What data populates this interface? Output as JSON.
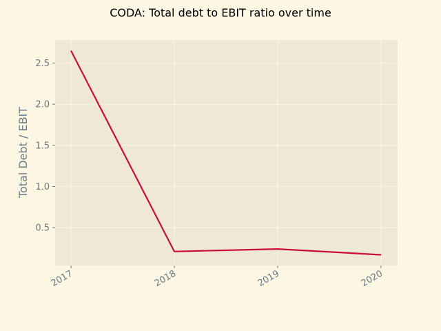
{
  "chart_data": {
    "type": "line",
    "title": "CODA: Total debt to EBIT ratio over time",
    "xlabel": "",
    "ylabel": "Total Debt / EBIT",
    "categories": [
      "2017",
      "2018",
      "2019",
      "2020"
    ],
    "series": [
      {
        "values": [
          2.65,
          0.21,
          0.24,
          0.17
        ]
      }
    ],
    "yticks": [
      0.5,
      1.0,
      1.5,
      2.0,
      2.5
    ],
    "ytick_labels": [
      "0.5",
      "1.0",
      "1.5",
      "2.0",
      "2.5"
    ],
    "ylim": [
      0.04,
      2.78
    ],
    "grid": true,
    "line_color": "#cb0c3c",
    "plot_bg": "#eee8d5",
    "figure_bg": "#fdf6e3"
  }
}
